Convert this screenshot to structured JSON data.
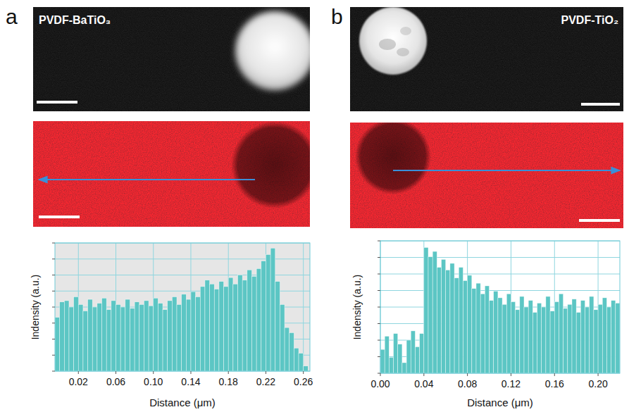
{
  "chart_data": [
    {
      "type": "histogram",
      "panel_label": "a",
      "title": "PVDF-BaTiO₃",
      "xlabel": "Distance (μm)",
      "ylabel": "Indensity (a.u.)",
      "color": "#5cc6c4",
      "grid": true,
      "tick_labels": "x",
      "xlim": [
        -0.005,
        0.267
      ],
      "ylim": [
        0,
        100
      ],
      "xticks": [
        0.02,
        0.06,
        {
          "value": 0.1,
          "label": "0.10"
        },
        0.14,
        0.18,
        0.22,
        0.26
      ],
      "yticks": [
        0,
        12.5,
        25,
        37.5,
        50,
        62.5,
        75,
        87.5,
        100
      ],
      "bins": [
        -0.005,
        0,
        0.005,
        0.01,
        0.015,
        0.02,
        0.025,
        0.03,
        0.035,
        0.04,
        0.045,
        0.05,
        0.055,
        0.06,
        0.065,
        0.07,
        0.075,
        0.08,
        0.085,
        0.09,
        0.095,
        0.1,
        0.105,
        0.11,
        0.115,
        0.12,
        0.125,
        0.13,
        0.135,
        0.14,
        0.145,
        0.15,
        0.155,
        0.16,
        0.165,
        0.17,
        0.175,
        0.18,
        0.185,
        0.19,
        0.195,
        0.2,
        0.205,
        0.21,
        0.215,
        0.22,
        0.225,
        0.23,
        0.235,
        0.24,
        0.245,
        0.25,
        0.255,
        0.26,
        0.265
      ],
      "values": [
        42,
        54,
        55,
        50,
        58,
        52,
        47,
        56,
        50,
        53,
        57,
        48,
        55,
        52,
        50,
        56,
        49,
        54,
        52,
        55,
        51,
        57,
        53,
        48,
        55,
        58,
        52,
        60,
        56,
        62,
        58,
        66,
        71,
        68,
        64,
        70,
        66,
        73,
        68,
        75,
        71,
        79,
        74,
        80,
        86,
        91,
        96,
        70,
        52,
        34,
        30,
        18,
        14,
        4
      ]
    },
    {
      "type": "histogram",
      "panel_label": "b",
      "title": "PVDF-TiO₂",
      "xlabel": "Distance (μm)",
      "ylabel": "Indensity (a.u.)",
      "color": "#5cc6c4",
      "grid": true,
      "tick_labels": "x",
      "xlim": [
        0,
        0.22
      ],
      "ylim": [
        0,
        100
      ],
      "xticks": [
        {
          "value": 0,
          "label": "0.00"
        },
        0.04,
        0.08,
        0.12,
        0.16,
        {
          "value": 0.2,
          "label": "0.20"
        }
      ],
      "yticks": [
        0,
        12.5,
        25,
        37.5,
        50,
        62.5,
        75,
        87.5,
        100
      ],
      "bins": [
        0,
        0.004,
        0.008,
        0.012,
        0.016,
        0.02,
        0.024,
        0.028,
        0.032,
        0.036,
        0.04,
        0.044,
        0.048,
        0.052,
        0.056,
        0.06,
        0.064,
        0.068,
        0.072,
        0.076,
        0.08,
        0.084,
        0.088,
        0.092,
        0.096,
        0.1,
        0.104,
        0.108,
        0.112,
        0.116,
        0.12,
        0.124,
        0.128,
        0.132,
        0.136,
        0.14,
        0.144,
        0.148,
        0.152,
        0.156,
        0.16,
        0.164,
        0.168,
        0.172,
        0.176,
        0.18,
        0.184,
        0.188,
        0.192,
        0.196,
        0.2,
        0.204,
        0.208,
        0.212,
        0.216,
        0.22
      ],
      "values": [
        18,
        28,
        12,
        30,
        22,
        8,
        25,
        32,
        20,
        30,
        95,
        88,
        92,
        80,
        86,
        78,
        83,
        72,
        80,
        70,
        74,
        64,
        68,
        60,
        66,
        55,
        62,
        57,
        52,
        60,
        54,
        48,
        58,
        50,
        55,
        46,
        53,
        50,
        58,
        47,
        54,
        60,
        49,
        52,
        56,
        46,
        55,
        50,
        58,
        48,
        52,
        57,
        50,
        55,
        53
      ]
    }
  ]
}
